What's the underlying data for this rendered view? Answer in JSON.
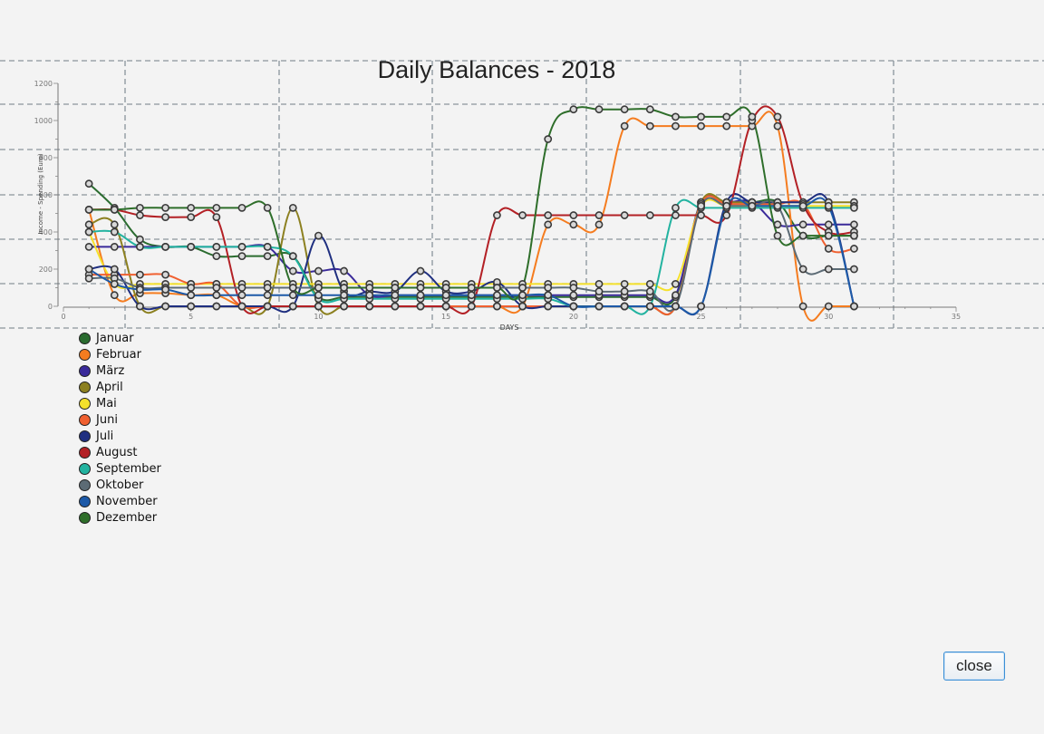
{
  "button": {
    "close_label": "close"
  },
  "chart_data": {
    "type": "line",
    "title": "Daily Balances - 2018",
    "xlabel": "DAYS",
    "ylabel": "Income - Spending (Euro)",
    "xlim": [
      0,
      35
    ],
    "ylim": [
      0,
      1200
    ],
    "x_ticks": [
      0,
      5,
      10,
      15,
      20,
      25,
      30,
      35
    ],
    "y_ticks": [
      0,
      200,
      400,
      600,
      800,
      1000,
      1200
    ],
    "grid": true,
    "legend": "bottom-left",
    "series": [
      {
        "name": "Januar",
        "color": "#2a6b2f",
        "x": [
          1,
          2,
          3,
          4,
          5,
          6,
          7,
          8,
          9,
          10,
          11,
          12,
          13,
          14,
          15,
          16,
          17,
          18,
          19,
          20,
          21,
          22,
          23,
          24,
          25,
          26,
          27,
          28,
          29,
          30,
          31
        ],
        "y": [
          660,
          530,
          360,
          320,
          320,
          270,
          270,
          270,
          270,
          50,
          50,
          50,
          50,
          50,
          50,
          50,
          50,
          50,
          50,
          50,
          50,
          50,
          50,
          50,
          560,
          560,
          560,
          560,
          380,
          380,
          380
        ]
      },
      {
        "name": "Februar",
        "color": "#f57c1f",
        "x": [
          1,
          2,
          3,
          4,
          5,
          6,
          7,
          8,
          9,
          10,
          11,
          12,
          13,
          14,
          15,
          16,
          17,
          18,
          19,
          20,
          21,
          22,
          23,
          24,
          25,
          26,
          27,
          28,
          29,
          30,
          31
        ],
        "y": [
          520,
          60,
          70,
          70,
          60,
          60,
          0,
          0,
          0,
          0,
          0,
          0,
          0,
          0,
          0,
          0,
          0,
          0,
          440,
          440,
          440,
          970,
          970,
          970,
          970,
          970,
          970,
          970,
          0,
          0,
          0
        ]
      },
      {
        "name": "März",
        "color": "#3a2a9a",
        "x": [
          1,
          2,
          3,
          4,
          5,
          6,
          7,
          8,
          9,
          10,
          11,
          12,
          13,
          14,
          15,
          16,
          17,
          18,
          19,
          20,
          21,
          22,
          23,
          24,
          25,
          26,
          27,
          28,
          29,
          30,
          31
        ],
        "y": [
          320,
          320,
          320,
          320,
          320,
          320,
          320,
          320,
          190,
          190,
          190,
          60,
          60,
          60,
          60,
          60,
          60,
          60,
          60,
          60,
          60,
          60,
          60,
          60,
          560,
          560,
          560,
          440,
          440,
          440,
          440
        ]
      },
      {
        "name": "April",
        "color": "#8c8020",
        "x": [
          1,
          2,
          3,
          4,
          5,
          6,
          7,
          8,
          9,
          10,
          11,
          12,
          13,
          14,
          15,
          16,
          17,
          18,
          19,
          20,
          21,
          22,
          23,
          24,
          25,
          26,
          27,
          28,
          29,
          30,
          31
        ],
        "y": [
          440,
          440,
          0,
          0,
          0,
          0,
          0,
          0,
          530,
          0,
          0,
          0,
          0,
          0,
          0,
          0,
          0,
          0,
          0,
          0,
          0,
          0,
          0,
          0,
          560,
          560,
          560,
          560,
          560,
          560,
          560
        ]
      },
      {
        "name": "Mai",
        "color": "#f5e12b",
        "x": [
          1,
          2,
          3,
          4,
          5,
          6,
          7,
          8,
          9,
          10,
          11,
          12,
          13,
          14,
          15,
          16,
          17,
          18,
          19,
          20,
          21,
          22,
          23,
          24,
          25,
          26,
          27,
          28,
          29,
          30,
          31
        ],
        "y": [
          400,
          120,
          120,
          120,
          120,
          120,
          120,
          120,
          120,
          120,
          120,
          120,
          120,
          120,
          120,
          120,
          120,
          120,
          120,
          120,
          120,
          120,
          120,
          120,
          540,
          540,
          540,
          540,
          540,
          540,
          540
        ]
      },
      {
        "name": "Juni",
        "color": "#f06030",
        "x": [
          1,
          2,
          3,
          4,
          5,
          6,
          7,
          8,
          9,
          10,
          11,
          12,
          13,
          14,
          15,
          16,
          17,
          18,
          19,
          20,
          21,
          22,
          23,
          24,
          25,
          26,
          27,
          28,
          29,
          30,
          31
        ],
        "y": [
          170,
          170,
          170,
          170,
          120,
          120,
          0,
          0,
          0,
          0,
          0,
          0,
          0,
          0,
          0,
          0,
          0,
          0,
          0,
          0,
          0,
          0,
          0,
          0,
          550,
          550,
          550,
          550,
          550,
          310,
          310
        ]
      },
      {
        "name": "Juli",
        "color": "#1f2f80",
        "x": [
          1,
          2,
          3,
          4,
          5,
          6,
          7,
          8,
          9,
          10,
          11,
          12,
          13,
          14,
          15,
          16,
          17,
          18,
          19,
          20,
          21,
          22,
          23,
          24,
          25,
          26,
          27,
          28,
          29,
          30,
          31
        ],
        "y": [
          200,
          200,
          0,
          0,
          0,
          0,
          0,
          0,
          0,
          380,
          80,
          80,
          80,
          190,
          80,
          80,
          130,
          0,
          0,
          0,
          0,
          0,
          0,
          0,
          0,
          560,
          560,
          560,
          560,
          560,
          0
        ]
      },
      {
        "name": "August",
        "color": "#b32025",
        "x": [
          1,
          2,
          3,
          4,
          5,
          6,
          7,
          8,
          9,
          10,
          11,
          12,
          13,
          14,
          15,
          16,
          17,
          18,
          19,
          20,
          21,
          22,
          23,
          24,
          25,
          26,
          27,
          28,
          29,
          30,
          31
        ],
        "y": [
          520,
          520,
          490,
          480,
          480,
          480,
          0,
          0,
          0,
          0,
          0,
          0,
          0,
          0,
          0,
          0,
          490,
          490,
          490,
          490,
          490,
          490,
          490,
          490,
          490,
          490,
          1000,
          1020,
          550,
          400,
          400
        ]
      },
      {
        "name": "September",
        "color": "#22b3a0",
        "x": [
          1,
          2,
          3,
          4,
          5,
          6,
          7,
          8,
          9,
          10,
          11,
          12,
          13,
          14,
          15,
          16,
          17,
          18,
          19,
          20,
          21,
          22,
          23,
          24,
          25,
          26,
          27,
          28,
          29,
          30,
          31
        ],
        "y": [
          400,
          400,
          320,
          320,
          320,
          320,
          320,
          320,
          270,
          40,
          40,
          40,
          40,
          40,
          40,
          40,
          40,
          40,
          40,
          0,
          0,
          0,
          0,
          530,
          530,
          530,
          530,
          530,
          530,
          530,
          530
        ]
      },
      {
        "name": "Oktober",
        "color": "#5c6b75",
        "x": [
          1,
          2,
          3,
          4,
          5,
          6,
          7,
          8,
          9,
          10,
          11,
          12,
          13,
          14,
          15,
          16,
          17,
          18,
          19,
          20,
          21,
          22,
          23,
          24,
          25,
          26,
          27,
          28,
          29,
          30,
          31
        ],
        "y": [
          150,
          150,
          100,
          100,
          100,
          100,
          100,
          100,
          100,
          100,
          100,
          100,
          100,
          100,
          100,
          100,
          100,
          100,
          100,
          100,
          80,
          80,
          80,
          0,
          540,
          540,
          540,
          540,
          200,
          200,
          200
        ]
      },
      {
        "name": "November",
        "color": "#1d5aa8",
        "x": [
          1,
          2,
          3,
          4,
          5,
          6,
          7,
          8,
          9,
          10,
          11,
          12,
          13,
          14,
          15,
          16,
          17,
          18,
          19,
          20,
          21,
          22,
          23,
          24,
          25,
          26,
          27,
          28,
          29,
          30,
          31
        ],
        "y": [
          200,
          120,
          90,
          90,
          60,
          60,
          60,
          60,
          60,
          60,
          60,
          60,
          60,
          60,
          60,
          60,
          60,
          60,
          60,
          0,
          0,
          0,
          0,
          0,
          0,
          540,
          540,
          540,
          540,
          540,
          0
        ]
      },
      {
        "name": "Dezember",
        "color": "#2e6e2a",
        "x": [
          1,
          2,
          3,
          4,
          5,
          6,
          7,
          8,
          9,
          10,
          11,
          12,
          13,
          14,
          15,
          16,
          17,
          18,
          19,
          20,
          21,
          22,
          23,
          24,
          25,
          26,
          27,
          28,
          29,
          30,
          31
        ],
        "y": [
          520,
          520,
          530,
          530,
          530,
          530,
          530,
          530,
          100,
          100,
          100,
          100,
          100,
          100,
          100,
          100,
          100,
          100,
          900,
          1060,
          1060,
          1060,
          1060,
          1020,
          1020,
          1020,
          1020,
          380,
          380,
          380,
          380
        ]
      }
    ]
  }
}
